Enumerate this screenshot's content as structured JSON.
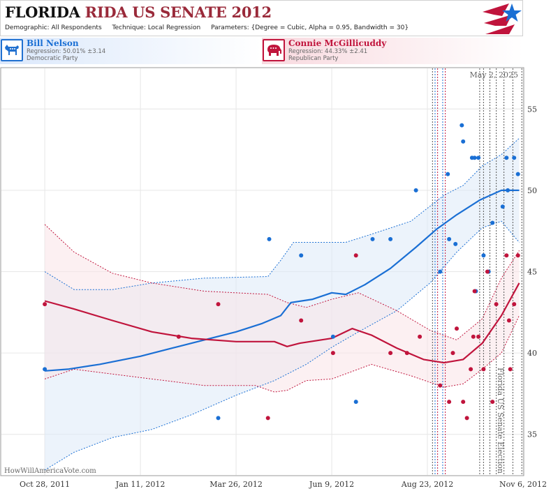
{
  "header": {
    "title_state": "FLORIDA",
    "title_race": "RIDA US SENATE 2012",
    "demographic_label": "Demographic:",
    "demographic_value": "All Respondents",
    "technique_label": "Technique:",
    "technique_value": "Local Regression",
    "parameters_label": "Parameters:",
    "parameters_value": "{Degree = Cubic, Alpha = 0.95, Bandwidth = 30}"
  },
  "candidates": [
    {
      "name": "Bill Nelson",
      "regression": "Regression: 50.01% ±3.14",
      "party": "Democratic Party",
      "color": "#1a6fd4"
    },
    {
      "name": "Connie McGillicuddy",
      "regression": "Regression: 44.33% ±2.41",
      "party": "Republican Party",
      "color": "#c0143c"
    }
  ],
  "chart_data": {
    "type": "scatter",
    "x_scale": "date",
    "x_ticks": [
      {
        "date": "2011-10-28",
        "label": "Oct 28, 2011"
      },
      {
        "date": "2012-01-11",
        "label": "Jan 11, 2012"
      },
      {
        "date": "2012-03-26",
        "label": "Mar 26, 2012"
      },
      {
        "date": "2012-06-09",
        "label": "Jun 9, 2012"
      },
      {
        "date": "2012-08-23",
        "label": "Aug 23, 2012"
      },
      {
        "date": "2012-11-06",
        "label": "Nov 6, 2012"
      }
    ],
    "xlim": [
      "2011-09-24",
      "2012-11-06"
    ],
    "ylim": [
      32.5,
      57.5
    ],
    "y_ticks": [
      35,
      40,
      45,
      50,
      55
    ],
    "grid": true,
    "annotations": {
      "top_right": "May 2, 2025",
      "election_label": "Florida US Senate Election",
      "watermark": "HowWillAmericaVote.com"
    },
    "event_lines": [
      {
        "date": "2012-08-27",
        "color": "#555555"
      },
      {
        "date": "2012-08-29",
        "color": "#1a6fd4"
      },
      {
        "date": "2012-08-31",
        "color": "#c0143c"
      },
      {
        "date": "2012-09-04",
        "color": "#1a6fd4"
      },
      {
        "date": "2012-09-06",
        "color": "#c0143c"
      },
      {
        "date": "2012-10-03",
        "color": "#555555"
      },
      {
        "date": "2012-10-06",
        "color": "#555555"
      },
      {
        "date": "2012-10-11",
        "color": "#555555"
      },
      {
        "date": "2012-10-16",
        "color": "#555555"
      },
      {
        "date": "2012-10-22",
        "color": "#555555"
      },
      {
        "date": "2012-10-29",
        "color": "#555555"
      },
      {
        "date": "2012-11-05",
        "color": "#555555"
      }
    ],
    "series": [
      {
        "name": "Bill Nelson",
        "color": "#1a6fd4",
        "band_color": "#dce9f8",
        "points": [
          [
            "2011-10-28",
            39
          ],
          [
            "2012-03-12",
            36
          ],
          [
            "2012-04-21",
            47
          ],
          [
            "2012-05-16",
            46
          ],
          [
            "2012-06-10",
            41
          ],
          [
            "2012-06-28",
            37
          ],
          [
            "2012-07-11",
            47
          ],
          [
            "2012-07-25",
            47
          ],
          [
            "2012-08-14",
            50
          ],
          [
            "2012-09-02",
            45
          ],
          [
            "2012-09-08",
            51
          ],
          [
            "2012-09-09",
            47
          ],
          [
            "2012-09-14",
            46.7
          ],
          [
            "2012-09-19",
            54
          ],
          [
            "2012-09-20",
            53
          ],
          [
            "2012-09-27",
            52
          ],
          [
            "2012-09-29",
            52
          ],
          [
            "2012-09-30",
            43.8
          ],
          [
            "2012-10-02",
            52
          ],
          [
            "2012-10-06",
            46
          ],
          [
            "2012-10-10",
            45
          ],
          [
            "2012-10-13",
            48
          ],
          [
            "2012-10-21",
            49
          ],
          [
            "2012-10-24",
            52
          ],
          [
            "2012-10-25",
            50
          ],
          [
            "2012-10-30",
            52
          ],
          [
            "2012-11-02",
            51
          ]
        ],
        "fit": [
          [
            "2011-10-28",
            38.9
          ],
          [
            "2011-11-15",
            39.0
          ],
          [
            "2011-12-10",
            39.3
          ],
          [
            "2012-01-11",
            39.8
          ],
          [
            "2012-02-05",
            40.3
          ],
          [
            "2012-03-01",
            40.8
          ],
          [
            "2012-03-26",
            41.3
          ],
          [
            "2012-04-15",
            41.8
          ],
          [
            "2012-04-30",
            42.3
          ],
          [
            "2012-05-08",
            43.1
          ],
          [
            "2012-05-25",
            43.3
          ],
          [
            "2012-06-09",
            43.7
          ],
          [
            "2012-06-20",
            43.6
          ],
          [
            "2012-07-05",
            44.2
          ],
          [
            "2012-07-25",
            45.2
          ],
          [
            "2012-08-14",
            46.5
          ],
          [
            "2012-08-30",
            47.6
          ],
          [
            "2012-09-15",
            48.5
          ],
          [
            "2012-10-03",
            49.4
          ],
          [
            "2012-10-20",
            50.0
          ],
          [
            "2012-11-03",
            50.0
          ]
        ],
        "band_upper": [
          [
            "2011-10-28",
            45.0
          ],
          [
            "2011-11-20",
            43.9
          ],
          [
            "2011-12-20",
            43.9
          ],
          [
            "2012-01-20",
            44.3
          ],
          [
            "2012-03-01",
            44.6
          ],
          [
            "2012-04-20",
            44.7
          ],
          [
            "2012-04-30",
            45.7
          ],
          [
            "2012-05-10",
            46.8
          ],
          [
            "2012-06-09",
            46.8
          ],
          [
            "2012-06-20",
            46.8
          ],
          [
            "2012-07-10",
            47.3
          ],
          [
            "2012-08-10",
            48.1
          ],
          [
            "2012-09-05",
            49.7
          ],
          [
            "2012-09-20",
            50.3
          ],
          [
            "2012-10-05",
            51.5
          ],
          [
            "2012-10-20",
            52.2
          ],
          [
            "2012-11-03",
            53.2
          ]
        ],
        "band_lower": [
          [
            "2011-10-28",
            32.8
          ],
          [
            "2011-11-20",
            33.9
          ],
          [
            "2011-12-20",
            34.8
          ],
          [
            "2012-01-20",
            35.3
          ],
          [
            "2012-02-20",
            36.2
          ],
          [
            "2012-03-26",
            37.4
          ],
          [
            "2012-04-25",
            38.3
          ],
          [
            "2012-05-20",
            39.3
          ],
          [
            "2012-06-10",
            40.4
          ],
          [
            "2012-06-30",
            41.3
          ],
          [
            "2012-07-30",
            42.6
          ],
          [
            "2012-08-25",
            44.3
          ],
          [
            "2012-09-15",
            46.2
          ],
          [
            "2012-10-05",
            47.7
          ],
          [
            "2012-10-20",
            48.1
          ],
          [
            "2012-11-03",
            46.8
          ]
        ]
      },
      {
        "name": "Connie McGillicuddy",
        "color": "#c0143c",
        "band_color": "#f9e4e8",
        "points": [
          [
            "2011-10-28",
            43
          ],
          [
            "2012-02-10",
            41
          ],
          [
            "2012-03-12",
            43
          ],
          [
            "2012-04-20",
            36
          ],
          [
            "2012-05-16",
            42
          ],
          [
            "2012-06-10",
            40
          ],
          [
            "2012-06-28",
            46
          ],
          [
            "2012-07-25",
            40
          ],
          [
            "2012-08-07",
            40
          ],
          [
            "2012-08-17",
            41
          ],
          [
            "2012-09-02",
            38
          ],
          [
            "2012-09-09",
            37
          ],
          [
            "2012-09-12",
            40
          ],
          [
            "2012-09-15",
            41.5
          ],
          [
            "2012-09-20",
            37
          ],
          [
            "2012-09-23",
            36
          ],
          [
            "2012-09-26",
            39
          ],
          [
            "2012-09-28",
            41
          ],
          [
            "2012-09-29",
            43.8
          ],
          [
            "2012-10-02",
            41
          ],
          [
            "2012-10-06",
            39
          ],
          [
            "2012-10-09",
            45
          ],
          [
            "2012-10-13",
            37
          ],
          [
            "2012-10-16",
            43
          ],
          [
            "2012-10-24",
            46
          ],
          [
            "2012-10-26",
            42
          ],
          [
            "2012-10-27",
            39
          ],
          [
            "2012-10-30",
            43
          ],
          [
            "2012-11-02",
            46
          ]
        ],
        "fit": [
          [
            "2011-10-28",
            43.2
          ],
          [
            "2011-11-20",
            42.7
          ],
          [
            "2011-12-20",
            42.0
          ],
          [
            "2012-01-20",
            41.3
          ],
          [
            "2012-02-20",
            40.9
          ],
          [
            "2012-03-26",
            40.7
          ],
          [
            "2012-04-25",
            40.7
          ],
          [
            "2012-05-05",
            40.4
          ],
          [
            "2012-05-15",
            40.6
          ],
          [
            "2012-06-09",
            40.9
          ],
          [
            "2012-06-25",
            41.5
          ],
          [
            "2012-07-10",
            41.1
          ],
          [
            "2012-07-30",
            40.3
          ],
          [
            "2012-08-20",
            39.6
          ],
          [
            "2012-09-05",
            39.4
          ],
          [
            "2012-09-20",
            39.6
          ],
          [
            "2012-10-05",
            40.6
          ],
          [
            "2012-10-20",
            42.3
          ],
          [
            "2012-11-03",
            44.3
          ]
        ],
        "band_upper": [
          [
            "2011-10-28",
            47.9
          ],
          [
            "2011-11-20",
            46.2
          ],
          [
            "2011-12-20",
            44.9
          ],
          [
            "2012-01-20",
            44.3
          ],
          [
            "2012-03-01",
            43.8
          ],
          [
            "2012-04-20",
            43.6
          ],
          [
            "2012-05-05",
            43.1
          ],
          [
            "2012-05-20",
            42.8
          ],
          [
            "2012-06-09",
            43.3
          ],
          [
            "2012-06-30",
            43.7
          ],
          [
            "2012-07-30",
            42.6
          ],
          [
            "2012-08-25",
            41.4
          ],
          [
            "2012-09-15",
            40.8
          ],
          [
            "2012-10-05",
            42.1
          ],
          [
            "2012-10-20",
            44.6
          ],
          [
            "2012-11-03",
            46.3
          ]
        ],
        "band_lower": [
          [
            "2011-10-28",
            38.4
          ],
          [
            "2011-11-20",
            39.0
          ],
          [
            "2012-01-20",
            38.4
          ],
          [
            "2012-03-01",
            38.0
          ],
          [
            "2012-04-10",
            38.0
          ],
          [
            "2012-04-25",
            37.6
          ],
          [
            "2012-05-05",
            37.7
          ],
          [
            "2012-05-20",
            38.3
          ],
          [
            "2012-06-09",
            38.4
          ],
          [
            "2012-07-10",
            39.3
          ],
          [
            "2012-08-10",
            38.6
          ],
          [
            "2012-09-05",
            37.9
          ],
          [
            "2012-09-20",
            38.1
          ],
          [
            "2012-10-05",
            39.0
          ],
          [
            "2012-10-20",
            40.0
          ],
          [
            "2012-11-03",
            42.3
          ]
        ]
      }
    ]
  }
}
